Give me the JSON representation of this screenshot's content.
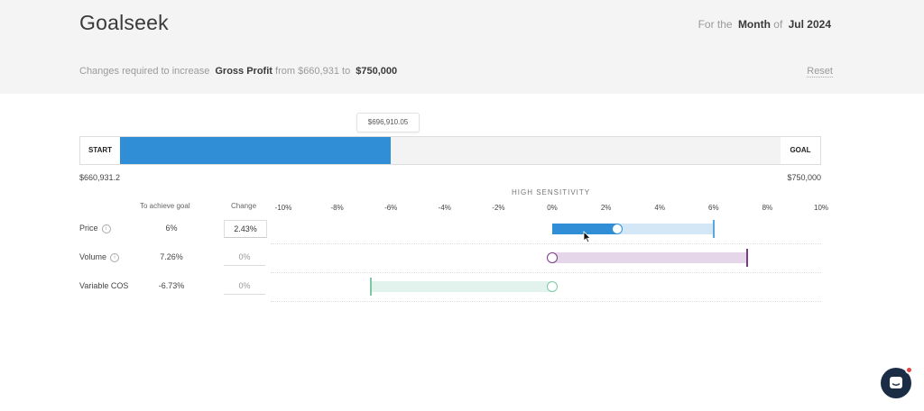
{
  "header": {
    "title": "Goalseek",
    "period_prefix": "For the",
    "period_unit": "Month",
    "period_of": "of",
    "period_value": "Jul 2024",
    "subtitle_prefix": "Changes required to increase",
    "metric": "Gross Profit",
    "from_text": "from $660,931 to",
    "target": "$750,000",
    "reset_label": "Reset"
  },
  "goal_bar": {
    "start_label": "START",
    "goal_label": "GOAL",
    "start_value": "$660,931.2",
    "goal_value": "$750,000",
    "tooltip_value": "$696,910.05",
    "progress_fraction": 0.41
  },
  "table": {
    "sensitivity_label": "HIGH SENSITIVITY",
    "col_achieve": "To achieve goal",
    "col_change": "Change",
    "axis_ticks": [
      "-10%",
      "-8%",
      "-6%",
      "-4%",
      "-2%",
      "0%",
      "2%",
      "4%",
      "6%",
      "8%",
      "10%"
    ],
    "axis_range_percent": [
      -10,
      10
    ],
    "rows": [
      {
        "label": "Price",
        "info": "i",
        "achieve": "6%",
        "change": "2.43%",
        "achieve_pct": 6,
        "change_pct": 2.43,
        "color_fill": "#2f8ed6",
        "color_track": "#d4e7f7",
        "color_end": "#5aa7e0"
      },
      {
        "label": "Volume",
        "info": "i",
        "achieve": "7.26%",
        "change": "0%",
        "achieve_pct": 7.26,
        "change_pct": 0,
        "color_fill": "#2f8ed6",
        "color_track": "#e6d6ea",
        "color_end": "#7a3a86"
      },
      {
        "label": "Variable COS",
        "info": "",
        "achieve": "-6.73%",
        "change": "0%",
        "achieve_pct": -6.73,
        "change_pct": 0,
        "color_fill": "#2f8ed6",
        "color_track": "#e1f3ec",
        "color_end": "#7dc7a3"
      }
    ]
  }
}
